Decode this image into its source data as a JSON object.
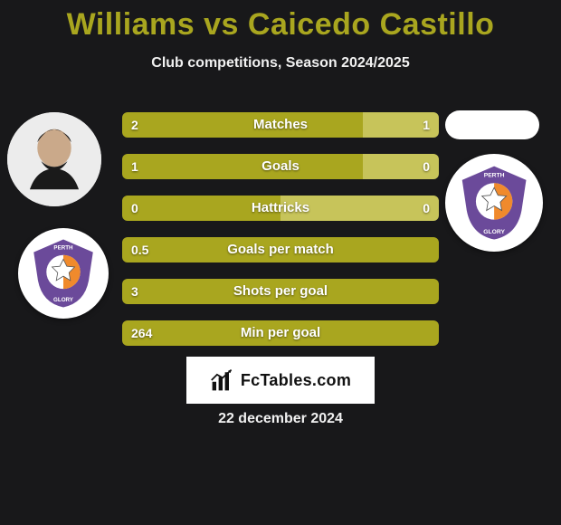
{
  "title": "Williams vs Caicedo Castillo",
  "subtitle": "Club competitions, Season 2024/2025",
  "date": "22 december 2024",
  "branding": {
    "text": "FcTables.com"
  },
  "colors": {
    "accent_left": "#a9a61f",
    "accent_right": "#c7c45a",
    "bg": "#18181a",
    "text": "#ffffff",
    "badge_purple": "#6b4a9a",
    "badge_orange": "#f08a2c"
  },
  "stats": [
    {
      "label": "Matches",
      "left_val": "2",
      "right_val": "1",
      "left_pct": 76,
      "right_pct": 24
    },
    {
      "label": "Goals",
      "left_val": "1",
      "right_val": "0",
      "left_pct": 76,
      "right_pct": 24
    },
    {
      "label": "Hattricks",
      "left_val": "0",
      "right_val": "0",
      "left_pct": 50,
      "right_pct": 50
    },
    {
      "label": "Goals per match",
      "left_val": "0.5",
      "right_val": "",
      "left_pct": 100,
      "right_pct": 0
    },
    {
      "label": "Shots per goal",
      "left_val": "3",
      "right_val": "",
      "left_pct": 100,
      "right_pct": 0
    },
    {
      "label": "Min per goal",
      "left_val": "264",
      "right_val": "",
      "left_pct": 100,
      "right_pct": 0
    }
  ]
}
